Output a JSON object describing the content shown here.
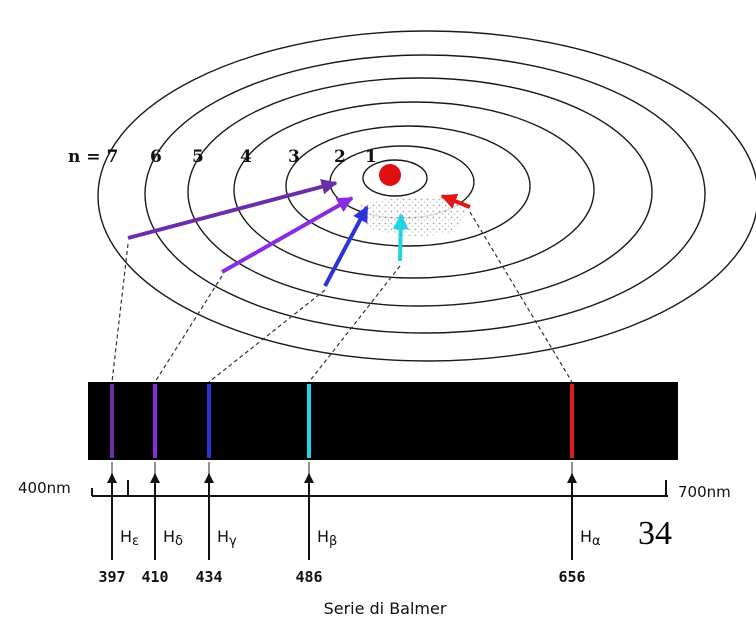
{
  "orbits": [
    {
      "label": "n = 7"
    },
    {
      "label": "6"
    },
    {
      "label": "5"
    },
    {
      "label": "4"
    },
    {
      "label": "3"
    },
    {
      "label": "2"
    },
    {
      "label": "1"
    }
  ],
  "lines": [
    {
      "wavelength": "397",
      "name_base": "H",
      "name_sub": "ε",
      "color": "#6a2fa8"
    },
    {
      "wavelength": "410",
      "name_base": "H",
      "name_sub": "δ",
      "color": "#8a2be2"
    },
    {
      "wavelength": "434",
      "name_base": "H",
      "name_sub": "γ",
      "color": "#2b35d6"
    },
    {
      "wavelength": "486",
      "name_base": "H",
      "name_sub": "β",
      "color": "#22d3e6"
    },
    {
      "wavelength": "656",
      "name_base": "H",
      "name_sub": "α",
      "color": "#e01818"
    }
  ],
  "spectrum": {
    "left_label": "400nm",
    "right_label": "700nm",
    "background": "#000000"
  },
  "nucleus_color": "#e01010",
  "title": "Serie di Balmer",
  "page_number": "34"
}
